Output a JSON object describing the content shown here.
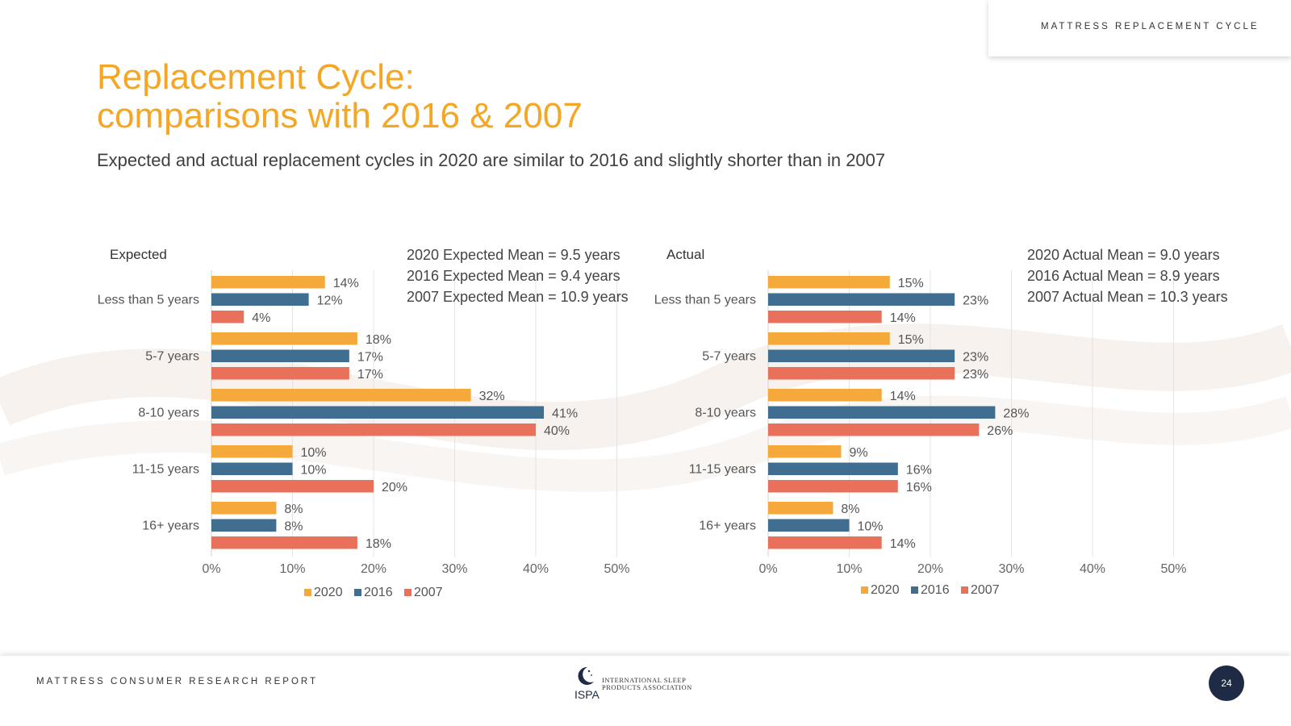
{
  "header": {
    "section": "MATTRESS REPLACEMENT CYCLE"
  },
  "title": {
    "line1": "Replacement Cycle:",
    "line2": "comparisons with 2016 & 2007"
  },
  "subtitle": "Expected and actual replacement cycles in 2020 are similar to 2016 and slightly shorter than in 2007",
  "colors": {
    "2020": "#F5A93B",
    "2016": "#3F6E91",
    "2007": "#E9705B",
    "title": "#F5A623",
    "page_badge": "#1f2a44"
  },
  "chart_data": [
    {
      "type": "bar",
      "orientation": "horizontal",
      "title": "Expected",
      "categories": [
        "Less than 5 years",
        "5-7 years",
        "8-10 years",
        "11-15 years",
        "16+ years"
      ],
      "series": [
        {
          "name": "2020",
          "values": [
            14,
            18,
            32,
            10,
            8
          ]
        },
        {
          "name": "2016",
          "values": [
            12,
            17,
            41,
            10,
            8
          ]
        },
        {
          "name": "2007",
          "values": [
            4,
            17,
            40,
            20,
            18
          ]
        }
      ],
      "x_ticks": [
        "0%",
        "10%",
        "20%",
        "30%",
        "40%",
        "50%"
      ],
      "xlim": [
        0,
        50
      ],
      "annotations": [
        "2020 Expected Mean = 9.5 years",
        "2016 Expected Mean = 9.4 years",
        "2007 Expected Mean = 10.9 years"
      ],
      "legend_position": "bottom",
      "grid": true
    },
    {
      "type": "bar",
      "orientation": "horizontal",
      "title": "Actual",
      "categories": [
        "Less than 5 years",
        "5-7 years",
        "8-10 years",
        "11-15 years",
        "16+ years"
      ],
      "series": [
        {
          "name": "2020",
          "values": [
            15,
            15,
            14,
            9,
            8
          ]
        },
        {
          "name": "2016",
          "values": [
            23,
            23,
            28,
            16,
            10
          ]
        },
        {
          "name": "2007",
          "values": [
            14,
            23,
            26,
            16,
            14
          ]
        }
      ],
      "x_ticks": [
        "0%",
        "10%",
        "20%",
        "30%",
        "40%",
        "50%"
      ],
      "xlim": [
        0,
        50
      ],
      "annotations": [
        "2020 Actual Mean = 9.0 years",
        "2016 Actual Mean = 8.9 years",
        "2007 Actual Mean = 10.3 years"
      ],
      "legend_position": "bottom",
      "grid": true
    }
  ],
  "footer": {
    "report": "MATTRESS CONSUMER RESEARCH REPORT",
    "logo_name_line1": "INTERNATIONAL SLEEP",
    "logo_name_line2": "PRODUCTS ASSOCIATION",
    "logo_abbr": "ISPA",
    "page": "24"
  }
}
